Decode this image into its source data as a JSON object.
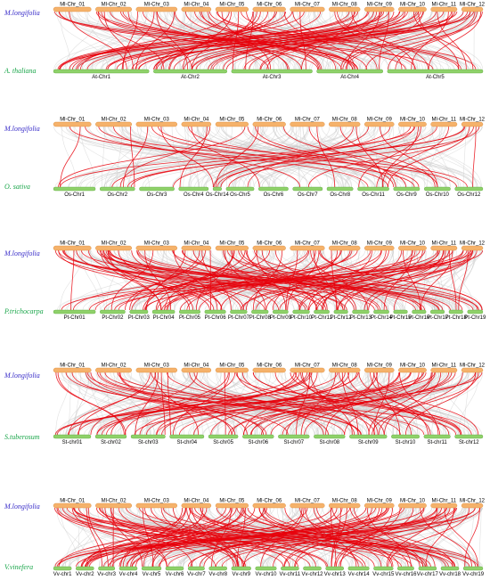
{
  "colors": {
    "top_chromosome": "#f5b26b",
    "top_chromosome_stroke": "#d98a3a",
    "bottom_chromosome": "#8fd16a",
    "bottom_chromosome_stroke": "#5aa83a",
    "query_species_text": "#3b2fc9",
    "target_species_text": "#1aa64a",
    "link_background": "#c8c8c8",
    "link_highlight": "#e8000a"
  },
  "panels": [
    {
      "top_species": "M.longifolia",
      "bottom_species": "A. thaliana",
      "top_chromosomes": [
        "Ml-Chr_01",
        "Ml-Chr_02",
        "Ml-Chr_03",
        "Ml-Chr_04",
        "Ml-Chr_05",
        "Ml-Chr_06",
        "Ml-Chr_07",
        "Ml-Chr_08",
        "Ml-Chr_09",
        "Ml-Chr_10",
        "Ml-Chr_11",
        "Ml-Chr_12"
      ],
      "bottom_chromosomes": [
        "At-Chr1",
        "At-Chr2",
        "At-Chr3",
        "At-Chr4",
        "At-Chr5"
      ]
    },
    {
      "top_species": "M.longifolia",
      "bottom_species": "O. sativa",
      "top_chromosomes": [
        "Ml-Chr_01",
        "Ml-Chr_02",
        "Ml-Chr_03",
        "Ml-Chr_04",
        "Ml-Chr_05",
        "Ml-Chr_06",
        "Ml-Chr_07",
        "Ml-Chr_08",
        "Ml-Chr_09",
        "Ml-Chr_10",
        "Ml-Chr_11",
        "Ml-Chr_12"
      ],
      "bottom_chromosomes": [
        "Os-Chr1",
        "Os-Chr2",
        "Os-Chr3",
        "Os-Chr4",
        "Os-Chr14",
        "Os-Chr5",
        "Os-Chr6",
        "Os-Chr7",
        "Os-Chr8",
        "Os-Chr11",
        "Os-Chr9",
        "Os-Chr10",
        "Os-Chr12"
      ]
    },
    {
      "top_species": "M.longifolia",
      "bottom_species": "P.trichocarpa",
      "top_chromosomes": [
        "Ml-Chr_01",
        "Ml-Chr_02",
        "Ml-Chr_03",
        "Ml-Chr_04",
        "Ml-Chr_05",
        "Ml-Chr_06",
        "Ml-Chr_07",
        "Ml-Chr_08",
        "Ml-Chr_09",
        "Ml-Chr_10",
        "Ml-Chr_11",
        "Ml-Chr_12"
      ],
      "bottom_chromosomes": [
        "Pt-Chr01",
        "Pt-Chr02",
        "Pt-Chr03",
        "Pt-Chr04",
        "Pt-Chr05",
        "Pt-Chr06",
        "Pt-Chr07",
        "Pt-Chr08",
        "Pt-Chr09",
        "Pt-Chr10",
        "Pt-Chr11",
        "Pt-Chr12",
        "Pt-Chr13",
        "Pt-Chr14",
        "Pt-Chr15",
        "Pt-Chr16",
        "Pt-Chr17",
        "Pt-Chr18",
        "Pt-Chr19"
      ]
    },
    {
      "top_species": "M.longifolia",
      "bottom_species": "S.tuberosum",
      "top_chromosomes": [
        "Ml-Chr_01",
        "Ml-Chr_02",
        "Ml-Chr_03",
        "Ml-Chr_04",
        "Ml-Chr_05",
        "Ml-Chr_06",
        "Ml-Chr_07",
        "Ml-Chr_08",
        "Ml-Chr_09",
        "Ml-Chr_10",
        "Ml-Chr_11",
        "Ml-Chr_12"
      ],
      "bottom_chromosomes": [
        "St-chr01",
        "St-chr02",
        "St-chr03",
        "St-chr04",
        "St-chr05",
        "St-chr06",
        "St-chr07",
        "St-chr08",
        "St-chr09",
        "St-chr10",
        "St-chr11",
        "St-chr12"
      ]
    },
    {
      "top_species": "M.longifolia",
      "bottom_species": "V.vinefera",
      "top_chromosomes": [
        "Ml-Chr_01",
        "Ml-Chr_02",
        "Ml-Chr_03",
        "Ml-Chr_04",
        "Ml-Chr_05",
        "Ml-Chr_06",
        "Ml-Chr_07",
        "Ml-Chr_08",
        "Ml-Chr_09",
        "Ml-Chr_10",
        "Ml-Chr_11",
        "Ml-Chr_12"
      ],
      "bottom_chromosomes": [
        "Vv-chr1",
        "Vv-chr2",
        "Vv-chr3",
        "Vv-chr4",
        "Vv-chr5",
        "Vv-chr6",
        "Vv-chr7",
        "Vv-chr8",
        "Vv-chr9",
        "Vv-chr10",
        "Vv-chr11",
        "Vv-chr12",
        "Vv-chr13",
        "Vv-chr14",
        "Vv-chr15",
        "Vv-chr16",
        "Vv-chr17",
        "Vv-chr18",
        "Vv-chr19"
      ]
    }
  ]
}
